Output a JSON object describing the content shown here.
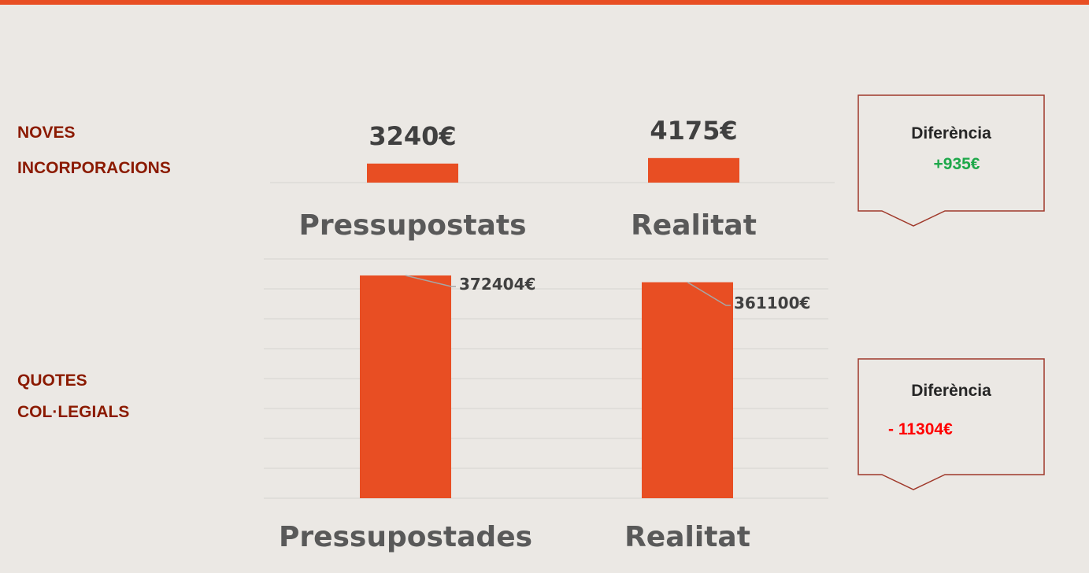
{
  "chart_data": [
    {
      "type": "bar",
      "title": "NOVES INCORPORACIONS",
      "categories": [
        "Pressupostats",
        "Realitat"
      ],
      "values": [
        3240,
        4175
      ],
      "value_labels": [
        "3240€",
        "4175€"
      ],
      "color": "#e84e23",
      "ylim": [
        0,
        30000
      ],
      "yticks": [
        0
      ],
      "grid": true,
      "annotation": {
        "title": "Diferència",
        "text": "+935€",
        "color": "#1ea84a"
      }
    },
    {
      "type": "bar",
      "title": "QUOTES COL·LEGIALS",
      "categories": [
        "Pressupostades",
        "Realitat"
      ],
      "values": [
        372404,
        361100
      ],
      "value_labels": [
        "372404€",
        "361100€"
      ],
      "color": "#e84e23",
      "ylim": [
        0,
        400000
      ],
      "yticks": [
        0,
        50000,
        100000,
        150000,
        200000,
        250000,
        300000,
        350000,
        400000
      ],
      "grid": true,
      "annotation": {
        "title": "Diferència",
        "text": "- 11304€",
        "color": "#ff0000"
      }
    }
  ]
}
